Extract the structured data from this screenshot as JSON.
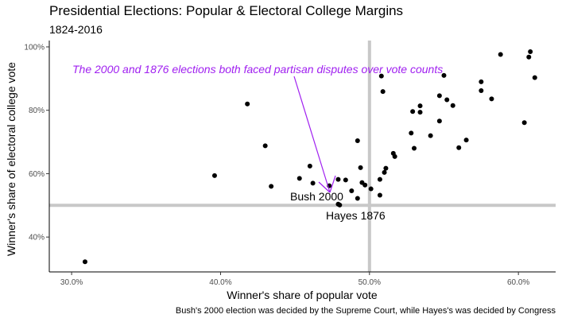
{
  "chart_data": {
    "type": "scatter",
    "title": "Presidential Elections: Popular & Electoral College Margins",
    "subtitle": "1824-2016",
    "xlabel": "Winner's share of popular vote",
    "ylabel": "Winner's share of electoral college vote",
    "caption": "Bush's 2000 election was decided by the Supreme Court, while Hayes's was decided by Congress",
    "xlim": [
      0.285,
      0.625
    ],
    "ylim": [
      0.29,
      1.02
    ],
    "x_ticks": [
      0.3,
      0.4,
      0.5,
      0.6
    ],
    "x_tick_labels": [
      "30.0%",
      "40.0%",
      "50.0%",
      "60.0%"
    ],
    "y_ticks": [
      0.4,
      0.6,
      0.8,
      1.0
    ],
    "y_tick_labels": [
      "40%",
      "60%",
      "80%",
      "100%"
    ],
    "reference_lines": {
      "x": 0.5,
      "y": 0.5,
      "color": "#c8c8c8"
    },
    "point_color": "#000000",
    "annotation_color": "#a020f0",
    "annotation": {
      "text": "The 2000 and 1876 elections both faced partisan disputes over vote counts"
    },
    "labels": [
      {
        "text": "Bush 2000",
        "x": 0.479,
        "y": 0.504
      },
      {
        "text": "Hayes 1876",
        "x": 0.48,
        "y": 0.501
      }
    ],
    "points": [
      {
        "x": 0.309,
        "y": 0.322
      },
      {
        "x": 0.396,
        "y": 0.594
      },
      {
        "x": 0.418,
        "y": 0.82
      },
      {
        "x": 0.43,
        "y": 0.688
      },
      {
        "x": 0.434,
        "y": 0.56
      },
      {
        "x": 0.453,
        "y": 0.585
      },
      {
        "x": 0.46,
        "y": 0.624
      },
      {
        "x": 0.462,
        "y": 0.57
      },
      {
        "x": 0.473,
        "y": 0.562
      },
      {
        "x": 0.479,
        "y": 0.582
      },
      {
        "x": 0.479,
        "y": 0.504
      },
      {
        "x": 0.48,
        "y": 0.501
      },
      {
        "x": 0.484,
        "y": 0.58
      },
      {
        "x": 0.488,
        "y": 0.546
      },
      {
        "x": 0.492,
        "y": 0.522
      },
      {
        "x": 0.492,
        "y": 0.704
      },
      {
        "x": 0.494,
        "y": 0.619
      },
      {
        "x": 0.495,
        "y": 0.572
      },
      {
        "x": 0.497,
        "y": 0.564
      },
      {
        "x": 0.501,
        "y": 0.552
      },
      {
        "x": 0.507,
        "y": 0.532
      },
      {
        "x": 0.507,
        "y": 0.582
      },
      {
        "x": 0.508,
        "y": 0.908
      },
      {
        "x": 0.509,
        "y": 0.859
      },
      {
        "x": 0.51,
        "y": 0.604
      },
      {
        "x": 0.511,
        "y": 0.617
      },
      {
        "x": 0.516,
        "y": 0.664
      },
      {
        "x": 0.517,
        "y": 0.654
      },
      {
        "x": 0.528,
        "y": 0.728
      },
      {
        "x": 0.529,
        "y": 0.796
      },
      {
        "x": 0.53,
        "y": 0.68
      },
      {
        "x": 0.534,
        "y": 0.794
      },
      {
        "x": 0.534,
        "y": 0.814
      },
      {
        "x": 0.541,
        "y": 0.72
      },
      {
        "x": 0.547,
        "y": 0.766
      },
      {
        "x": 0.547,
        "y": 0.846
      },
      {
        "x": 0.55,
        "y": 0.91
      },
      {
        "x": 0.552,
        "y": 0.833
      },
      {
        "x": 0.556,
        "y": 0.815
      },
      {
        "x": 0.56,
        "y": 0.682
      },
      {
        "x": 0.565,
        "y": 0.706
      },
      {
        "x": 0.575,
        "y": 0.89
      },
      {
        "x": 0.575,
        "y": 0.862
      },
      {
        "x": 0.582,
        "y": 0.836
      },
      {
        "x": 0.588,
        "y": 0.976
      },
      {
        "x": 0.604,
        "y": 0.761
      },
      {
        "x": 0.607,
        "y": 0.968
      },
      {
        "x": 0.608,
        "y": 0.985
      },
      {
        "x": 0.611,
        "y": 0.903
      }
    ]
  }
}
